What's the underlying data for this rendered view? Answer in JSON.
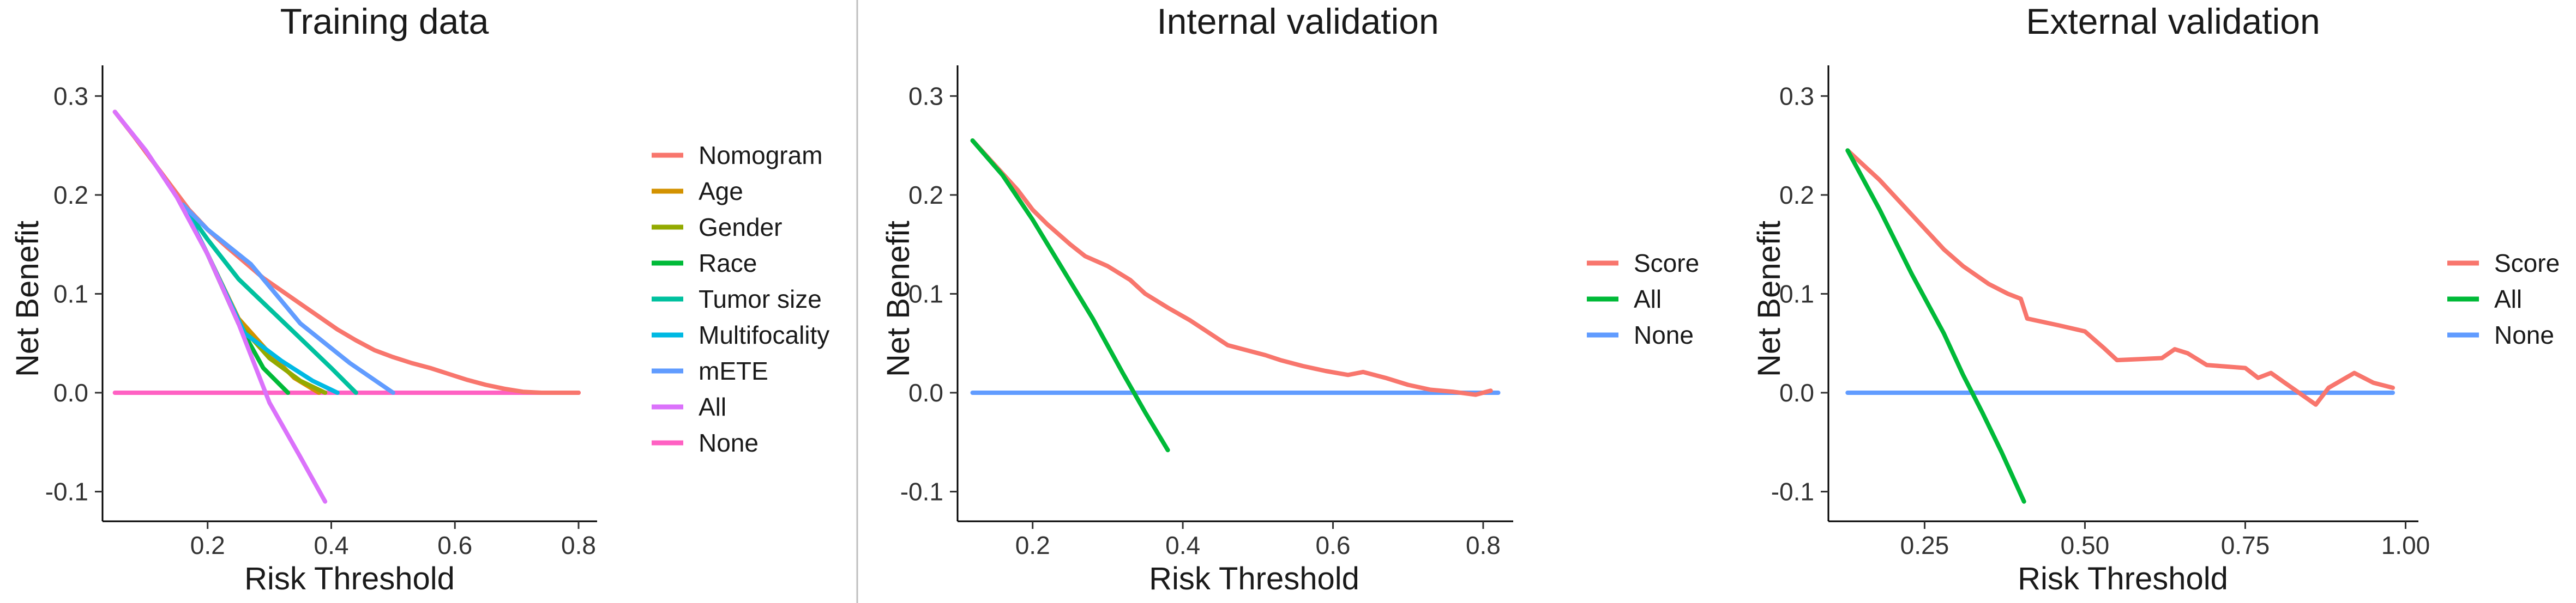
{
  "colors": {
    "nomogram": "#F8766D",
    "age": "#D39200",
    "gender": "#93AA00",
    "race": "#00BA38",
    "tumor_size": "#00C19F",
    "multifocality": "#00B9E3",
    "mete": "#619CFF",
    "all_pink": "#DB72FB",
    "none_pink": "#FF61C3",
    "score": "#F8766D",
    "all_green": "#00BA38",
    "none_blue": "#619CFF",
    "divider": "#bfbfbf",
    "axis": "#000000"
  },
  "chart_data": [
    {
      "type": "line",
      "title": "Training data",
      "xlabel": "Risk Threshold",
      "ylabel": "Net Benefit",
      "xlim": [
        0.03,
        0.83
      ],
      "ylim": [
        -0.13,
        0.32
      ],
      "xticks": [
        0.2,
        0.4,
        0.6,
        0.8
      ],
      "xtick_labels": [
        "0.2",
        "0.4",
        "0.6",
        "0.8"
      ],
      "yticks": [
        -0.1,
        0.0,
        0.1,
        0.2,
        0.3
      ],
      "ytick_labels": [
        "-0.1",
        "0.0",
        "0.1",
        "0.2",
        "0.3"
      ],
      "legend_position": "right",
      "series": [
        {
          "name": "Nomogram",
          "color": "#F8766D",
          "x": [
            0.05,
            0.08,
            0.11,
            0.14,
            0.17,
            0.2,
            0.23,
            0.26,
            0.29,
            0.32,
            0.35,
            0.38,
            0.41,
            0.44,
            0.47,
            0.5,
            0.53,
            0.56,
            0.59,
            0.62,
            0.65,
            0.68,
            0.71,
            0.74,
            0.8
          ],
          "y": [
            0.284,
            0.26,
            0.235,
            0.21,
            0.185,
            0.165,
            0.148,
            0.132,
            0.116,
            0.103,
            0.09,
            0.077,
            0.064,
            0.053,
            0.043,
            0.036,
            0.03,
            0.025,
            0.019,
            0.013,
            0.008,
            0.004,
            0.001,
            0.0,
            0.0
          ]
        },
        {
          "name": "Age",
          "color": "#D39200",
          "x": [
            0.16,
            0.2,
            0.25,
            0.3,
            0.34,
            0.38
          ],
          "y": [
            0.19,
            0.14,
            0.075,
            0.04,
            0.015,
            0.0
          ]
        },
        {
          "name": "Gender",
          "color": "#93AA00",
          "x": [
            0.16,
            0.2,
            0.25,
            0.3,
            0.35,
            0.39
          ],
          "y": [
            0.19,
            0.14,
            0.07,
            0.035,
            0.012,
            0.0
          ]
        },
        {
          "name": "Race",
          "color": "#00BA38",
          "x": [
            0.16,
            0.2,
            0.25,
            0.29,
            0.33
          ],
          "y": [
            0.19,
            0.14,
            0.07,
            0.025,
            0.0
          ]
        },
        {
          "name": "Tumor size",
          "color": "#00C19F",
          "x": [
            0.16,
            0.2,
            0.25,
            0.3,
            0.35,
            0.4,
            0.44
          ],
          "y": [
            0.19,
            0.155,
            0.115,
            0.085,
            0.055,
            0.025,
            0.0
          ]
        },
        {
          "name": "Multifocality",
          "color": "#00B9E3",
          "x": [
            0.16,
            0.2,
            0.26,
            0.32,
            0.37,
            0.41
          ],
          "y": [
            0.19,
            0.14,
            0.06,
            0.032,
            0.012,
            0.0
          ]
        },
        {
          "name": "mETE",
          "color": "#619CFF",
          "x": [
            0.16,
            0.2,
            0.27,
            0.35,
            0.43,
            0.5
          ],
          "y": [
            0.19,
            0.165,
            0.13,
            0.07,
            0.03,
            0.0
          ]
        },
        {
          "name": "All",
          "color": "#DB72FB",
          "x": [
            0.05,
            0.1,
            0.15,
            0.2,
            0.25,
            0.3,
            0.35,
            0.39
          ],
          "y": [
            0.284,
            0.245,
            0.198,
            0.14,
            0.07,
            -0.01,
            -0.065,
            -0.11
          ]
        },
        {
          "name": "None",
          "color": "#FF61C3",
          "x": [
            0.05,
            0.8
          ],
          "y": [
            0.0,
            0.0
          ]
        }
      ]
    },
    {
      "type": "line",
      "title": "Internal validation",
      "xlabel": "Risk Threshold",
      "ylabel": "Net Benefit",
      "xlim": [
        0.1,
        0.84
      ],
      "ylim": [
        -0.13,
        0.32
      ],
      "xticks": [
        0.2,
        0.4,
        0.6,
        0.8
      ],
      "xtick_labels": [
        "0.2",
        "0.4",
        "0.6",
        "0.8"
      ],
      "yticks": [
        -0.1,
        0.0,
        0.1,
        0.2,
        0.3
      ],
      "ytick_labels": [
        "-0.1",
        "0.0",
        "0.1",
        "0.2",
        "0.3"
      ],
      "legend_position": "right",
      "series": [
        {
          "name": "Score",
          "color": "#F8766D",
          "x": [
            0.12,
            0.15,
            0.18,
            0.2,
            0.22,
            0.25,
            0.27,
            0.3,
            0.33,
            0.35,
            0.38,
            0.41,
            0.43,
            0.46,
            0.48,
            0.51,
            0.53,
            0.56,
            0.59,
            0.62,
            0.64,
            0.67,
            0.7,
            0.73,
            0.76,
            0.79,
            0.81
          ],
          "y": [
            0.255,
            0.23,
            0.205,
            0.185,
            0.17,
            0.15,
            0.138,
            0.128,
            0.114,
            0.1,
            0.086,
            0.073,
            0.063,
            0.048,
            0.044,
            0.038,
            0.033,
            0.027,
            0.022,
            0.018,
            0.021,
            0.015,
            0.008,
            0.003,
            0.001,
            -0.002,
            0.002
          ]
        },
        {
          "name": "All",
          "color": "#00BA38",
          "x": [
            0.12,
            0.16,
            0.2,
            0.24,
            0.28,
            0.32,
            0.35,
            0.38
          ],
          "y": [
            0.255,
            0.22,
            0.175,
            0.125,
            0.075,
            0.02,
            -0.02,
            -0.058
          ]
        },
        {
          "name": "None",
          "color": "#619CFF",
          "x": [
            0.12,
            0.82
          ],
          "y": [
            0.0,
            0.0
          ]
        }
      ]
    },
    {
      "type": "line",
      "title": "External validation",
      "xlabel": "Risk Threshold",
      "ylabel": "Net Benefit",
      "xlim": [
        0.1,
        1.02
      ],
      "ylim": [
        -0.13,
        0.32
      ],
      "xticks": [
        0.25,
        0.5,
        0.75,
        1.0
      ],
      "xtick_labels": [
        "0.25",
        "0.50",
        "0.75",
        "1.00"
      ],
      "yticks": [
        -0.1,
        0.0,
        0.1,
        0.2,
        0.3
      ],
      "ytick_labels": [
        "-0.1",
        "0.0",
        "0.1",
        "0.2",
        "0.3"
      ],
      "legend_position": "right",
      "series": [
        {
          "name": "Score",
          "color": "#F8766D",
          "x": [
            0.13,
            0.18,
            0.23,
            0.28,
            0.31,
            0.35,
            0.38,
            0.4,
            0.41,
            0.46,
            0.5,
            0.53,
            0.55,
            0.62,
            0.64,
            0.66,
            0.69,
            0.75,
            0.77,
            0.79,
            0.86,
            0.88,
            0.92,
            0.95,
            0.98
          ],
          "y": [
            0.245,
            0.215,
            0.18,
            0.145,
            0.128,
            0.11,
            0.1,
            0.095,
            0.075,
            0.068,
            0.062,
            0.045,
            0.033,
            0.035,
            0.044,
            0.04,
            0.028,
            0.025,
            0.015,
            0.02,
            -0.012,
            0.005,
            0.02,
            0.01,
            0.005
          ]
        },
        {
          "name": "All",
          "color": "#00BA38",
          "x": [
            0.13,
            0.18,
            0.23,
            0.28,
            0.31,
            0.34,
            0.37,
            0.405
          ],
          "y": [
            0.245,
            0.185,
            0.12,
            0.06,
            0.018,
            -0.02,
            -0.06,
            -0.11
          ]
        },
        {
          "name": "None",
          "color": "#619CFF",
          "x": [
            0.13,
            0.98
          ],
          "y": [
            0.0,
            0.0
          ]
        }
      ]
    }
  ]
}
